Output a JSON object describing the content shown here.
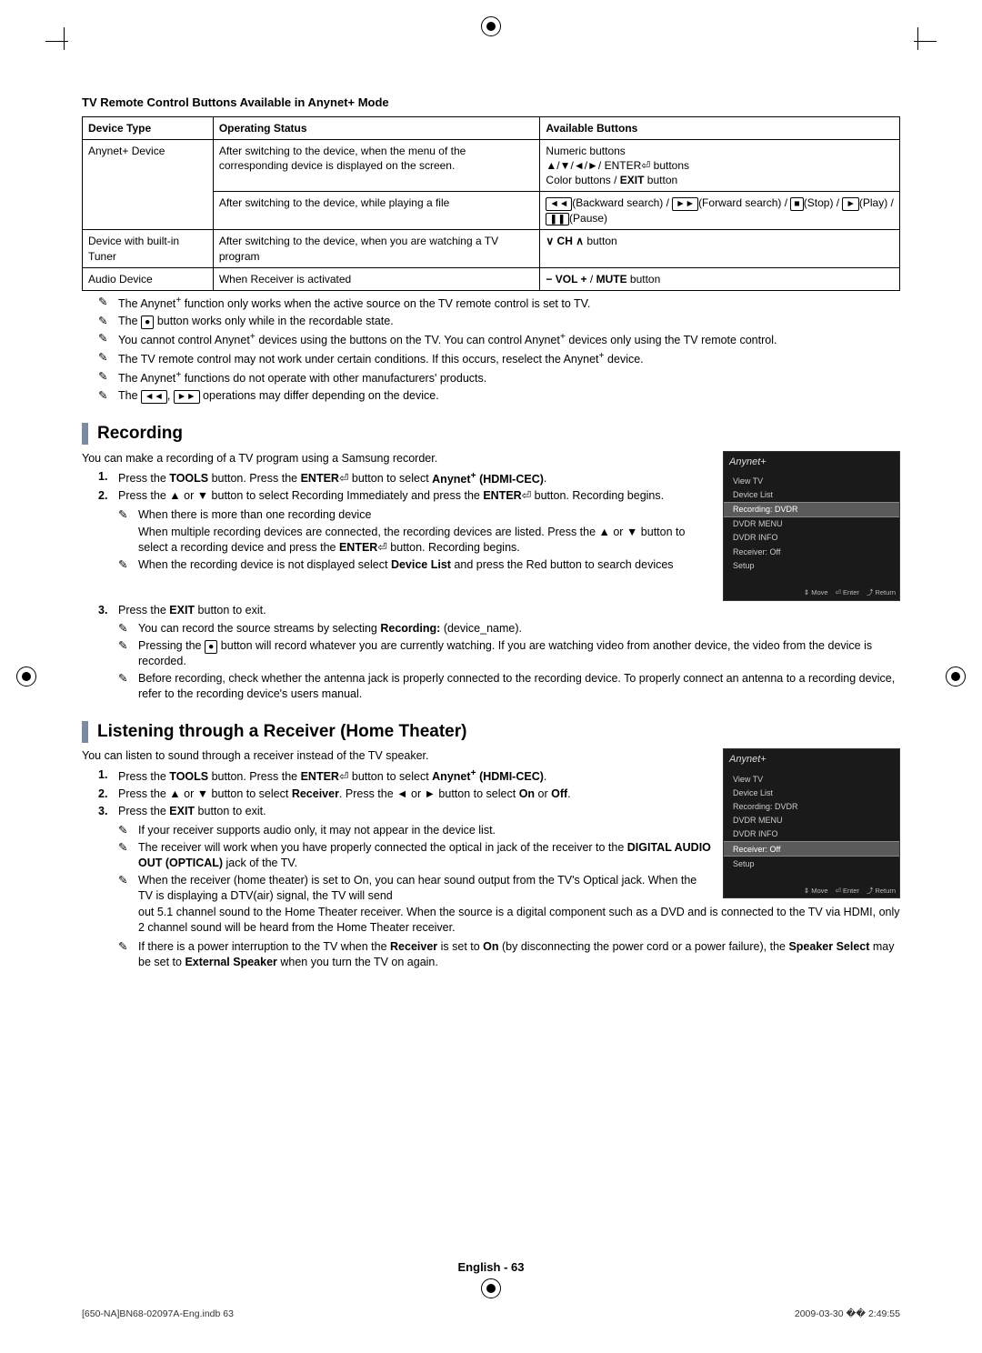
{
  "section1_title": "TV Remote Control Buttons Available in Anynet+ Mode",
  "table": {
    "headers": [
      "Device Type",
      "Operating Status",
      "Available Buttons"
    ],
    "r1c1": "Anynet+ Device",
    "r1c2": "After switching to the device, when the menu of the corresponding device is displayed on the screen.",
    "r1c3_l1": "Numeric buttons",
    "r1c3_l2": "▲/▼/◄/►/ ENTER⏎ buttons",
    "r1c3_l3": "Color buttons / EXIT button",
    "r2c2": "After switching to the device, while playing a file",
    "r2c3": "◄◄(Backward search) / ►►(Forward search) / ■(Stop) / ►(Play) / ❚❚(Pause)",
    "r3c1": "Device with built-in Tuner",
    "r3c2": "After switching to the device, when you are watching a TV program",
    "r3c3": "∨ CH ∧ button",
    "r4c1": "Audio Device",
    "r4c2": "When Receiver is activated",
    "r4c3": "− VOL + / MUTE button"
  },
  "notes1": [
    "The Anynet+ function only works when the active source on the TV remote control is set to TV.",
    "The ● button works only while in the recordable state.",
    "You cannot control Anynet+ devices using the buttons on the TV. You can control Anynet+ devices only using the TV remote control.",
    "The TV remote control may not work under certain conditions. If this occurs, reselect the Anynet+ device.",
    "The Anynet+ functions do not operate with other manufacturers' products.",
    "The ◄◄, ►► operations may differ depending on the device."
  ],
  "recording": {
    "title": "Recording",
    "intro": "You can make a recording of a TV program using a Samsung recorder.",
    "step1": "Press the TOOLS button. Press the ENTER⏎ button to select Anynet+ (HDMI-CEC).",
    "step2": "Press the ▲ or ▼ button to select Recording Immediately and press the ENTER⏎ button. Recording begins.",
    "step2_n1": "When there is more than one recording device",
    "step2_n1b": "When multiple recording devices are connected, the recording devices are listed. Press the ▲ or ▼ button to select a recording device and press the ENTER⏎ button. Recording begins.",
    "step2_n2": "When the recording device is not displayed select Device List and press the Red button to search devices",
    "step3": "Press the EXIT button to exit.",
    "step3_n1": "You can record the source streams by selecting Recording: (device_name).",
    "step3_n2": "Pressing the ● button will record whatever you are currently watching. If you are watching video from another device, the video from the device is recorded.",
    "step3_n3": "Before recording, check whether the antenna jack is properly connected to the recording device. To properly connect an antenna to a recording device, refer to the recording device's users manual."
  },
  "receiver": {
    "title": "Listening through a Receiver (Home Theater)",
    "intro": "You can listen to sound through a receiver instead of the TV speaker.",
    "step1": "Press the TOOLS button. Press the ENTER⏎ button to select Anynet+ (HDMI-CEC).",
    "step2": "Press the ▲ or ▼ button to select Receiver. Press the ◄ or ► button to select On or Off.",
    "step3": "Press the EXIT button to exit.",
    "n1": "If your receiver supports audio only, it may not appear in the device list.",
    "n2": "The receiver will work when you have properly connected the optical in jack of the receiver to the DIGITAL AUDIO OUT (OPTICAL) jack of the TV.",
    "n3": "When the receiver (home theater) is set to On, you can hear sound output from the TV's Optical jack. When the TV is displaying a DTV(air) signal, the TV will send out 5.1 channel sound to the Home Theater receiver. When the source is a digital component such as a DVD and is connected to the TV via HDMI, only 2 channel sound will be heard from the Home Theater receiver.",
    "n4": "If there is a power interruption to the TV when the Receiver is set to On (by disconnecting the power cord or a power failure), the Speaker Select may be set to External Speaker when you turn the TV on again."
  },
  "menu1": {
    "title": "Anynet+",
    "items": [
      "View TV",
      "Device List",
      "Recording: DVDR",
      "DVDR MENU",
      "DVDR INFO",
      "Receiver: Off",
      "Setup"
    ],
    "sel_index": 2,
    "foot": [
      "⇕ Move",
      "⏎ Enter",
      "⤴ Return"
    ]
  },
  "menu2": {
    "title": "Anynet+",
    "items": [
      "View TV",
      "Device List",
      "Recording: DVDR",
      "DVDR MENU",
      "DVDR INFO",
      "Receiver: Off",
      "Setup"
    ],
    "sel_index": 5,
    "foot": [
      "⇕ Move",
      "⏎ Enter",
      "⤴ Return"
    ]
  },
  "footer": "English - 63",
  "imprint_left": "[650-NA]BN68-02097A-Eng.indb   63",
  "imprint_right": "2009-03-30   �� 2:49:55"
}
